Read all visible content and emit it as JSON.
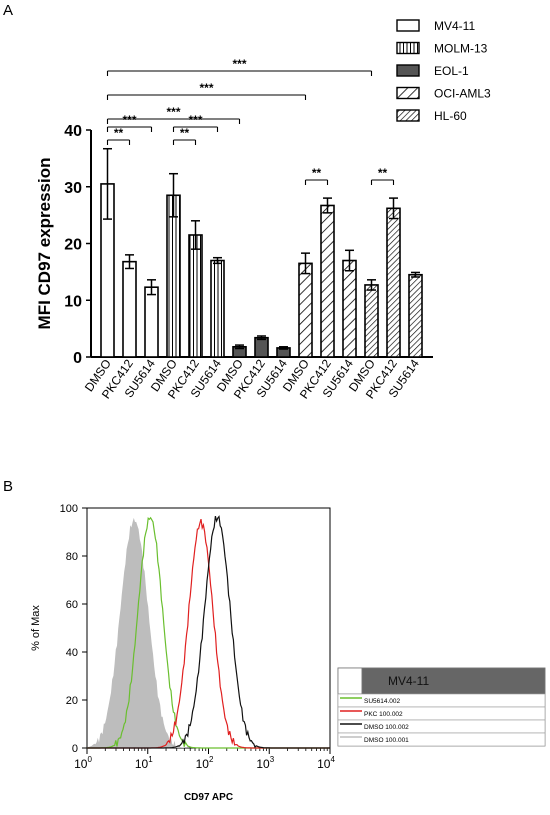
{
  "panels": {
    "a_label": "A",
    "b_label": "B"
  },
  "chart_data": [
    {
      "type": "bar",
      "ylabel": "MFI CD97 expression",
      "ylim": [
        0,
        40
      ],
      "yticks": [
        "0",
        "10",
        "20",
        "30",
        "40"
      ],
      "legend": [
        {
          "name": "MV4-11",
          "pattern": "white"
        },
        {
          "name": "MOLM-13",
          "pattern": "vlines"
        },
        {
          "name": "EOL-1",
          "pattern": "gray"
        },
        {
          "name": "OCI-AML3",
          "pattern": "diag-wide"
        },
        {
          "name": "HL-60",
          "pattern": "diag-dense"
        }
      ],
      "legend_position": "top-right",
      "groups": [
        {
          "series": "MV4-11",
          "pattern": "white",
          "bars": [
            {
              "label": "DMSO",
              "value": 30.5,
              "err": 6.2
            },
            {
              "label": "PKC412",
              "value": 16.8,
              "err": 1.2
            },
            {
              "label": "SU5614",
              "value": 12.3,
              "err": 1.3
            }
          ]
        },
        {
          "series": "MOLM-13",
          "pattern": "vlines",
          "bars": [
            {
              "label": "DMSO",
              "value": 28.5,
              "err": 3.8
            },
            {
              "label": "PKC412",
              "value": 21.5,
              "err": 2.5
            },
            {
              "label": "SU5614",
              "value": 17.0,
              "err": 0.5
            }
          ]
        },
        {
          "series": "EOL-1",
          "pattern": "gray",
          "bars": [
            {
              "label": "DMSO",
              "value": 1.8,
              "err": 0.3
            },
            {
              "label": "PKC412",
              "value": 3.4,
              "err": 0.3
            },
            {
              "label": "SU5614",
              "value": 1.6,
              "err": 0.2
            }
          ]
        },
        {
          "series": "OCI-AML3",
          "pattern": "diag-wide",
          "bars": [
            {
              "label": "DMSO",
              "value": 16.5,
              "err": 1.8
            },
            {
              "label": "PKC412",
              "value": 26.7,
              "err": 1.3
            },
            {
              "label": "SU5614",
              "value": 17.0,
              "err": 1.8
            }
          ]
        },
        {
          "series": "HL-60",
          "pattern": "diag-dense",
          "bars": [
            {
              "label": "DMSO",
              "value": 12.7,
              "err": 0.9
            },
            {
              "label": "PKC412",
              "value": 26.2,
              "err": 1.8
            },
            {
              "label": "SU5614",
              "value": 14.5,
              "err": 0.4
            }
          ]
        }
      ],
      "significance": [
        {
          "from": [
            0,
            0
          ],
          "to": [
            0,
            1
          ],
          "label": "**"
        },
        {
          "from": [
            0,
            0
          ],
          "to": [
            0,
            2
          ],
          "label": "***"
        },
        {
          "from": [
            1,
            0
          ],
          "to": [
            1,
            1
          ],
          "label": "**"
        },
        {
          "from": [
            1,
            0
          ],
          "to": [
            1,
            2
          ],
          "label": "***"
        },
        {
          "from": [
            0,
            0
          ],
          "to": [
            2,
            0
          ],
          "label": "***"
        },
        {
          "from": [
            0,
            0
          ],
          "to": [
            3,
            0
          ],
          "label": "***"
        },
        {
          "from": [
            0,
            0
          ],
          "to": [
            4,
            0
          ],
          "label": "***"
        },
        {
          "from": [
            3,
            0
          ],
          "to": [
            3,
            1
          ],
          "label": "**"
        },
        {
          "from": [
            4,
            0
          ],
          "to": [
            4,
            1
          ],
          "label": "**"
        }
      ]
    },
    {
      "type": "line",
      "xlabel": "CD97 APC",
      "ylabel": "% of Max",
      "xscale": "log",
      "xlim": [
        1,
        10000
      ],
      "ylim": [
        0,
        100
      ],
      "yticks": [
        "0",
        "20",
        "40",
        "60",
        "80",
        "100"
      ],
      "xticks": [
        {
          "base": "10",
          "exp": "0"
        },
        {
          "base": "10",
          "exp": "1"
        },
        {
          "base": "10",
          "exp": "2"
        },
        {
          "base": "10",
          "exp": "3"
        },
        {
          "base": "10",
          "exp": "4"
        }
      ],
      "legend_title": "MV4-11",
      "legend_position": "bottom-right",
      "series": [
        {
          "name": "SU5614.002",
          "color": "#6abf2f",
          "peak": 11,
          "sigma": 0.2,
          "max": 96
        },
        {
          "name": "PKC 100.002",
          "color": "#e02020",
          "peak": 75,
          "sigma": 0.2,
          "max": 94
        },
        {
          "name": "DMSO 100.002",
          "color": "#111111",
          "peak": 140,
          "sigma": 0.21,
          "max": 96
        },
        {
          "name": "DMSO 100.001",
          "color": "#bdbdbd",
          "fill": true,
          "peak": 6,
          "sigma": 0.23,
          "max": 95
        }
      ]
    }
  ]
}
